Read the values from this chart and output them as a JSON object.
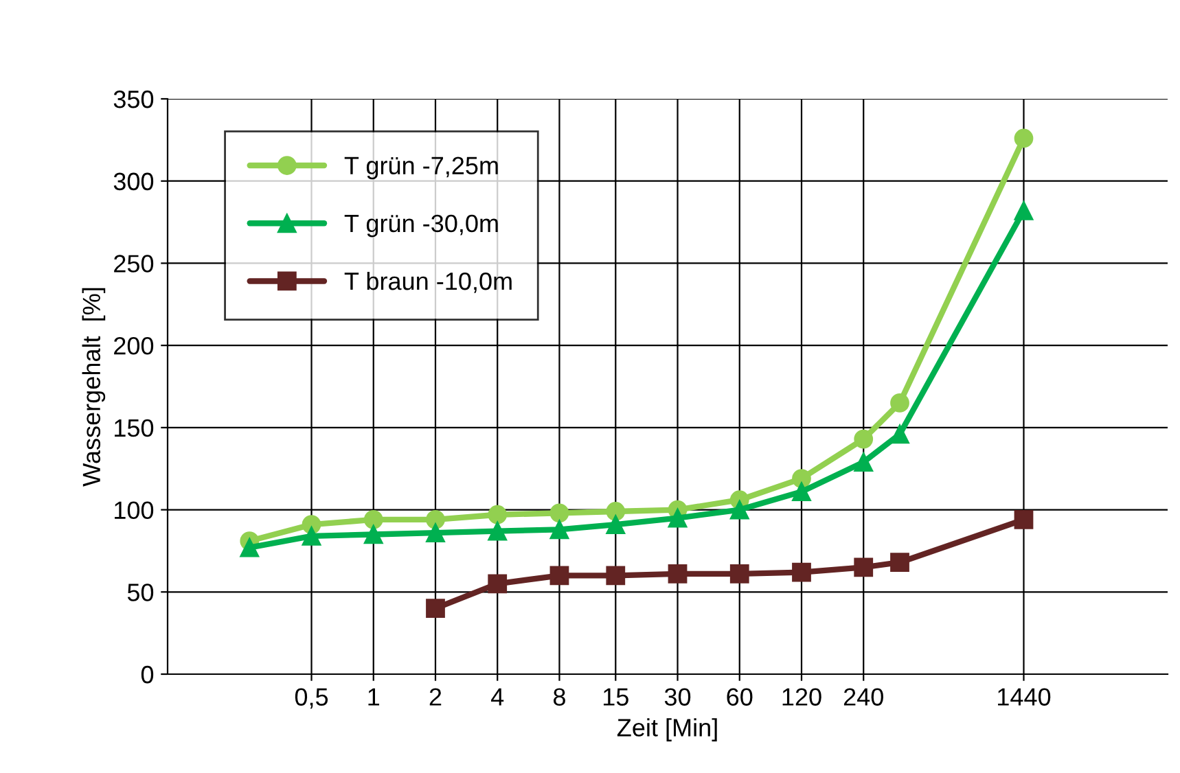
{
  "chart_data": {
    "type": "line",
    "xlabel": "Zeit [Min]",
    "ylabel": "Wassergehalt  [%]",
    "log": "x",
    "xlim": [
      0.1,
      7200
    ],
    "ylim": [
      0,
      350
    ],
    "xticks": [
      {
        "value": 0.5,
        "label": "0,5"
      },
      1,
      2,
      4,
      8,
      15,
      30,
      60,
      120,
      240,
      1440
    ],
    "yticks": [
      0,
      50,
      100,
      150,
      200,
      250,
      300,
      350
    ],
    "grid": true,
    "legend": "top left",
    "line_style": "solid",
    "series": [
      {
        "name": "T grün -7,25m",
        "color": "#92d050",
        "marker": "circle",
        "x": [
          0.25,
          0.5,
          1,
          2,
          4,
          8,
          15,
          30,
          60,
          120,
          240,
          360,
          1440
        ],
        "values": [
          81,
          91,
          94,
          94,
          97,
          98,
          99,
          100,
          106,
          119,
          143,
          165,
          326
        ]
      },
      {
        "name": "T grün -30,0m",
        "color": "#00b050",
        "marker": "triangle",
        "x": [
          0.25,
          0.5,
          1,
          2,
          4,
          8,
          15,
          30,
          60,
          120,
          240,
          360,
          1440
        ],
        "values": [
          77,
          84,
          85,
          86,
          87,
          88,
          91,
          95,
          100,
          111,
          129,
          146,
          282
        ]
      },
      {
        "name": "T braun -10,0m",
        "color": "#632423",
        "marker": "square",
        "x": [
          2,
          4,
          8,
          15,
          30,
          60,
          120,
          240,
          360,
          1440
        ],
        "values": [
          40,
          55,
          60,
          60,
          61,
          61,
          62,
          65,
          68,
          94
        ]
      }
    ]
  }
}
